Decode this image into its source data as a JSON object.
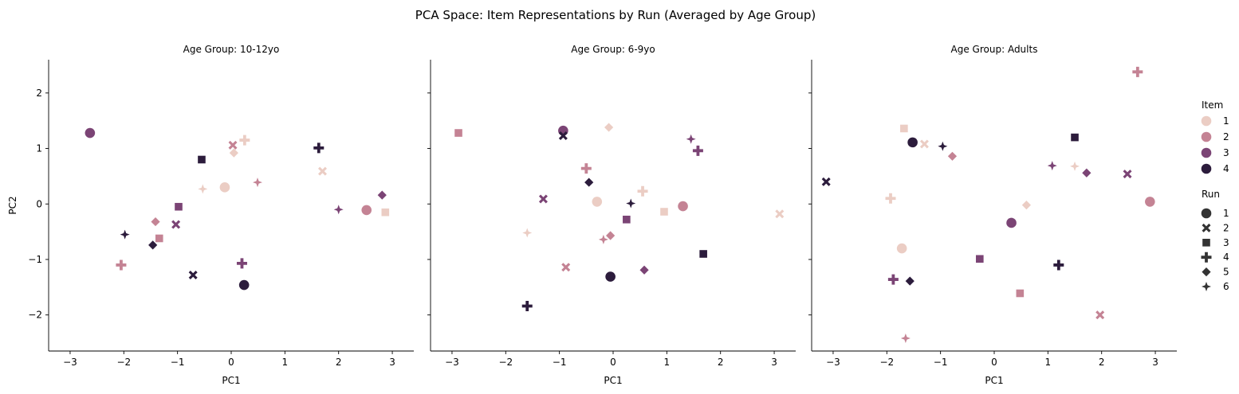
{
  "suptitle": "PCA Space: Item Representations by Run (Averaged by Age Group)",
  "legend": {
    "item_title": "Item",
    "items": [
      "1",
      "2",
      "3",
      "4"
    ],
    "run_title": "Run",
    "runs": [
      "1",
      "2",
      "3",
      "4",
      "5",
      "6"
    ],
    "placement": "right",
    "item_colors": {
      "1": "#ebcdc4",
      "2": "#c48394",
      "3": "#7b4475",
      "4": "#2c1c3c"
    },
    "run_markers": {
      "1": "circle",
      "2": "x",
      "3": "square",
      "4": "plus",
      "5": "diamond",
      "6": "star4"
    }
  },
  "chart_data": [
    {
      "type": "scatter",
      "title": "Age Group: 10-12yo",
      "xlabel": "PC1",
      "ylabel": "PC2",
      "xlim": [
        -3.4,
        3.4
      ],
      "ylim": [
        -2.65,
        2.6
      ],
      "xticks": [
        -3,
        -2,
        -1,
        0,
        1,
        2,
        3
      ],
      "yticks": [
        -2,
        -1,
        0,
        1,
        2
      ],
      "points": [
        {
          "item": 1,
          "run": 1,
          "x": -0.12,
          "y": 0.3
        },
        {
          "item": 1,
          "run": 2,
          "x": 1.7,
          "y": 0.59
        },
        {
          "item": 1,
          "run": 3,
          "x": 2.87,
          "y": -0.15
        },
        {
          "item": 1,
          "run": 4,
          "x": 0.25,
          "y": 1.15
        },
        {
          "item": 1,
          "run": 5,
          "x": 0.05,
          "y": 0.92
        },
        {
          "item": 1,
          "run": 6,
          "x": -0.53,
          "y": 0.27
        },
        {
          "item": 2,
          "run": 1,
          "x": 2.52,
          "y": -0.11
        },
        {
          "item": 2,
          "run": 2,
          "x": 0.03,
          "y": 1.06
        },
        {
          "item": 2,
          "run": 3,
          "x": -1.34,
          "y": -0.62
        },
        {
          "item": 2,
          "run": 4,
          "x": -2.05,
          "y": -1.1
        },
        {
          "item": 2,
          "run": 5,
          "x": -1.41,
          "y": -0.32
        },
        {
          "item": 2,
          "run": 6,
          "x": 0.49,
          "y": 0.39
        },
        {
          "item": 3,
          "run": 1,
          "x": -2.63,
          "y": 1.28
        },
        {
          "item": 3,
          "run": 2,
          "x": -1.03,
          "y": -0.37
        },
        {
          "item": 3,
          "run": 3,
          "x": -0.98,
          "y": -0.05
        },
        {
          "item": 3,
          "run": 4,
          "x": 0.2,
          "y": -1.07
        },
        {
          "item": 3,
          "run": 5,
          "x": 2.81,
          "y": 0.16
        },
        {
          "item": 3,
          "run": 6,
          "x": 2.0,
          "y": -0.1
        },
        {
          "item": 4,
          "run": 1,
          "x": 0.24,
          "y": -1.46
        },
        {
          "item": 4,
          "run": 2,
          "x": -0.71,
          "y": -1.28
        },
        {
          "item": 4,
          "run": 3,
          "x": -0.55,
          "y": 0.8
        },
        {
          "item": 4,
          "run": 4,
          "x": 1.63,
          "y": 1.01
        },
        {
          "item": 4,
          "run": 5,
          "x": -1.46,
          "y": -0.74
        },
        {
          "item": 4,
          "run": 6,
          "x": -1.98,
          "y": -0.55
        }
      ]
    },
    {
      "type": "scatter",
      "title": "Age Group: 6-9yo",
      "xlabel": "PC1",
      "ylabel": "",
      "xlim": [
        -3.4,
        3.4
      ],
      "ylim": [
        -2.65,
        2.6
      ],
      "xticks": [
        -3,
        -2,
        -1,
        0,
        1,
        2,
        3
      ],
      "yticks": [
        -2,
        -1,
        0,
        1,
        2
      ],
      "points": [
        {
          "item": 1,
          "run": 1,
          "x": -0.3,
          "y": 0.04
        },
        {
          "item": 1,
          "run": 2,
          "x": 3.1,
          "y": -0.18
        },
        {
          "item": 1,
          "run": 3,
          "x": 0.95,
          "y": -0.14
        },
        {
          "item": 1,
          "run": 4,
          "x": 0.55,
          "y": 0.23
        },
        {
          "item": 1,
          "run": 5,
          "x": -0.08,
          "y": 1.38
        },
        {
          "item": 1,
          "run": 6,
          "x": -1.6,
          "y": -0.52
        },
        {
          "item": 2,
          "run": 1,
          "x": 1.3,
          "y": -0.04
        },
        {
          "item": 2,
          "run": 2,
          "x": -0.88,
          "y": -1.14
        },
        {
          "item": 2,
          "run": 3,
          "x": -2.88,
          "y": 1.28
        },
        {
          "item": 2,
          "run": 4,
          "x": -0.5,
          "y": 0.64
        },
        {
          "item": 2,
          "run": 5,
          "x": -0.05,
          "y": -0.57
        },
        {
          "item": 2,
          "run": 6,
          "x": -0.18,
          "y": -0.64
        },
        {
          "item": 3,
          "run": 1,
          "x": -0.93,
          "y": 1.32
        },
        {
          "item": 3,
          "run": 2,
          "x": -1.3,
          "y": 0.09
        },
        {
          "item": 3,
          "run": 3,
          "x": 0.25,
          "y": -0.28
        },
        {
          "item": 3,
          "run": 4,
          "x": 1.58,
          "y": 0.96
        },
        {
          "item": 3,
          "run": 5,
          "x": 0.58,
          "y": -1.19
        },
        {
          "item": 3,
          "run": 6,
          "x": 1.45,
          "y": 1.17
        },
        {
          "item": 4,
          "run": 1,
          "x": -0.05,
          "y": -1.31
        },
        {
          "item": 4,
          "run": 2,
          "x": -0.93,
          "y": 1.23
        },
        {
          "item": 4,
          "run": 3,
          "x": 1.68,
          "y": -0.9
        },
        {
          "item": 4,
          "run": 4,
          "x": -1.6,
          "y": -1.84
        },
        {
          "item": 4,
          "run": 5,
          "x": -0.45,
          "y": 0.39
        },
        {
          "item": 4,
          "run": 6,
          "x": 0.33,
          "y": 0.01
        }
      ]
    },
    {
      "type": "scatter",
      "title": "Age Group: Adults",
      "xlabel": "PC1",
      "ylabel": "",
      "xlim": [
        -3.4,
        3.4
      ],
      "ylim": [
        -2.65,
        2.6
      ],
      "xticks": [
        -3,
        -2,
        -1,
        0,
        1,
        2,
        3
      ],
      "yticks": [
        -2,
        -1,
        0,
        1,
        2
      ],
      "points": [
        {
          "item": 1,
          "run": 1,
          "x": -1.72,
          "y": -0.8
        },
        {
          "item": 1,
          "run": 2,
          "x": -1.3,
          "y": 1.08
        },
        {
          "item": 1,
          "run": 3,
          "x": -1.68,
          "y": 1.36
        },
        {
          "item": 1,
          "run": 4,
          "x": -1.93,
          "y": 0.1
        },
        {
          "item": 1,
          "run": 5,
          "x": 0.6,
          "y": -0.02
        },
        {
          "item": 1,
          "run": 6,
          "x": 1.5,
          "y": 0.68
        },
        {
          "item": 2,
          "run": 1,
          "x": 2.9,
          "y": 0.04
        },
        {
          "item": 2,
          "run": 2,
          "x": 1.97,
          "y": -2.0
        },
        {
          "item": 2,
          "run": 3,
          "x": 0.48,
          "y": -1.61
        },
        {
          "item": 2,
          "run": 4,
          "x": 2.67,
          "y": 2.38
        },
        {
          "item": 2,
          "run": 5,
          "x": -0.78,
          "y": 0.86
        },
        {
          "item": 2,
          "run": 6,
          "x": -1.65,
          "y": -2.42
        },
        {
          "item": 3,
          "run": 1,
          "x": 0.32,
          "y": -0.34
        },
        {
          "item": 3,
          "run": 2,
          "x": 2.48,
          "y": 0.54
        },
        {
          "item": 3,
          "run": 3,
          "x": -0.27,
          "y": -0.99
        },
        {
          "item": 3,
          "run": 4,
          "x": -1.88,
          "y": -1.36
        },
        {
          "item": 3,
          "run": 5,
          "x": 1.72,
          "y": 0.56
        },
        {
          "item": 3,
          "run": 6,
          "x": 1.08,
          "y": 0.69
        },
        {
          "item": 4,
          "run": 1,
          "x": -1.52,
          "y": 1.11
        },
        {
          "item": 4,
          "run": 2,
          "x": -3.13,
          "y": 0.4
        },
        {
          "item": 4,
          "run": 3,
          "x": 1.5,
          "y": 1.2
        },
        {
          "item": 4,
          "run": 4,
          "x": 1.2,
          "y": -1.1
        },
        {
          "item": 4,
          "run": 5,
          "x": -1.57,
          "y": -1.39
        },
        {
          "item": 4,
          "run": 6,
          "x": -0.96,
          "y": 1.04
        }
      ]
    }
  ]
}
